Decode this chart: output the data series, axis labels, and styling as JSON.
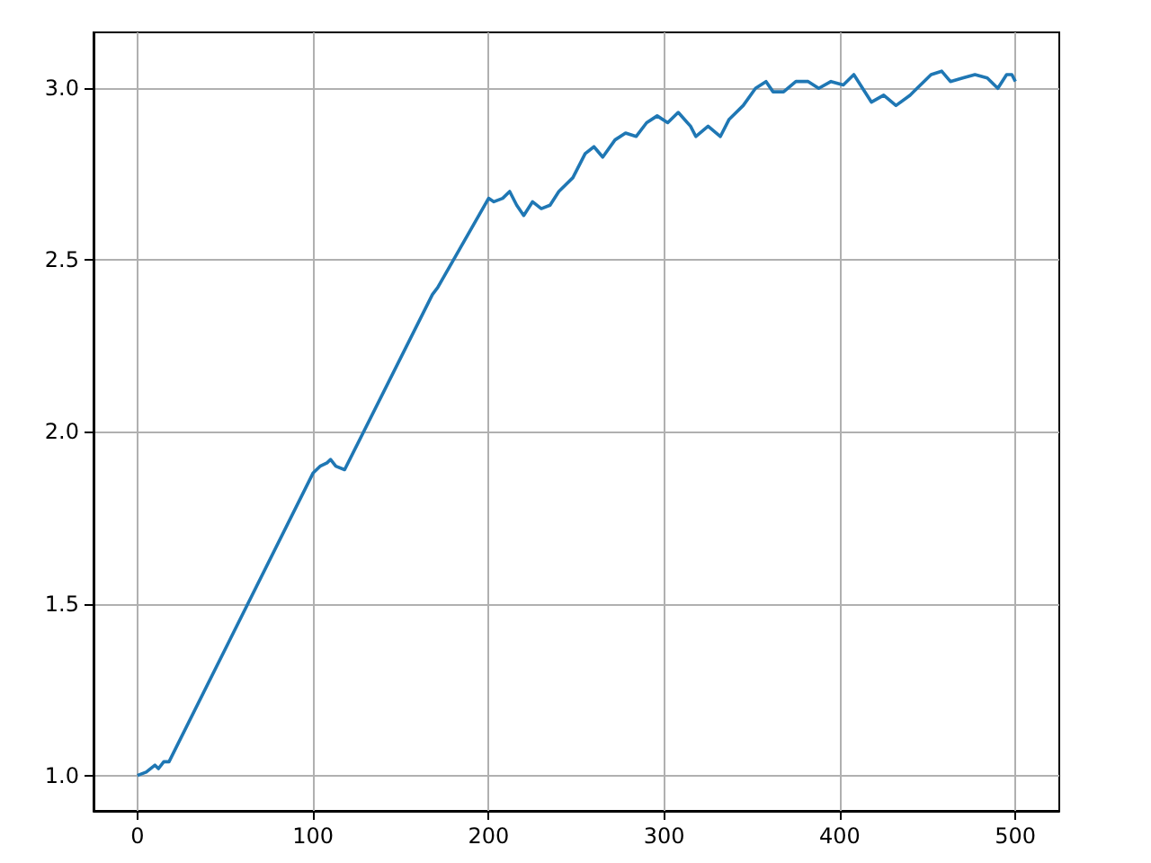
{
  "chart_data": {
    "type": "line",
    "color": "#1f77b4",
    "x": [
      0,
      5,
      10,
      12,
      15,
      18,
      100,
      104,
      108,
      110,
      113,
      118,
      168,
      171,
      200,
      203,
      208,
      212,
      216,
      220,
      225,
      230,
      235,
      240,
      248,
      255,
      260,
      265,
      272,
      278,
      284,
      290,
      296,
      302,
      308,
      315,
      318,
      325,
      332,
      337,
      345,
      352,
      358,
      362,
      368,
      375,
      382,
      388,
      395,
      402,
      408,
      418,
      425,
      432,
      440,
      452,
      458,
      463,
      470,
      477,
      484,
      490,
      495,
      498,
      500
    ],
    "values": [
      1.0,
      1.01,
      1.03,
      1.02,
      1.04,
      1.04,
      1.88,
      1.9,
      1.91,
      1.92,
      1.9,
      1.89,
      2.4,
      2.42,
      2.68,
      2.67,
      2.68,
      2.7,
      2.66,
      2.63,
      2.67,
      2.65,
      2.66,
      2.7,
      2.74,
      2.81,
      2.83,
      2.8,
      2.85,
      2.87,
      2.86,
      2.9,
      2.92,
      2.9,
      2.93,
      2.89,
      2.86,
      2.89,
      2.86,
      2.91,
      2.95,
      3.0,
      3.02,
      2.99,
      2.99,
      3.02,
      3.02,
      3.0,
      3.02,
      3.01,
      3.04,
      2.96,
      2.98,
      2.95,
      2.98,
      3.04,
      3.05,
      3.02,
      3.03,
      3.04,
      3.03,
      3.0,
      3.04,
      3.04,
      3.02
    ],
    "xlim": [
      -25,
      525
    ],
    "xticks": [
      0,
      100,
      200,
      300,
      400,
      500
    ],
    "ylim": [
      0.897,
      3.163
    ],
    "yticks": [
      {
        "value": 1,
        "label": "1.0"
      },
      {
        "value": 1.5,
        "label": "1.5"
      },
      {
        "value": 2,
        "label": "2.0"
      },
      {
        "value": 2.5,
        "label": "2.5"
      },
      {
        "value": 3,
        "label": "3.0"
      }
    ],
    "grid": true
  }
}
